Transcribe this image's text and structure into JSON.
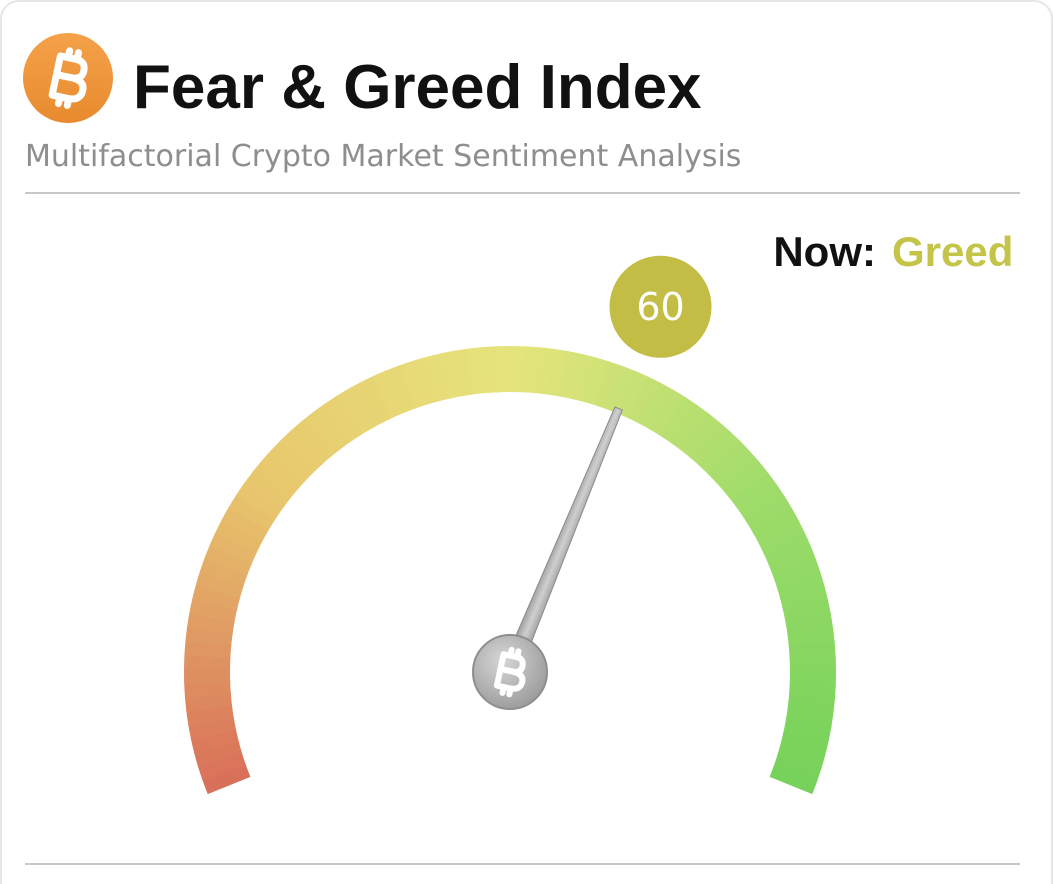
{
  "header": {
    "title": "Fear & Greed Index",
    "subtitle": "Multifactorial Crypto Market Sentiment Analysis"
  },
  "chart_data": {
    "type": "gauge",
    "now_label": "Now:",
    "status": "Greed",
    "status_color": "#c3c448",
    "value": 60,
    "ylim": [
      0,
      100
    ],
    "colors": [
      "#d9705a",
      "#e8c56c",
      "#e6e47c",
      "#9edc6a",
      "#76d25a"
    ]
  }
}
